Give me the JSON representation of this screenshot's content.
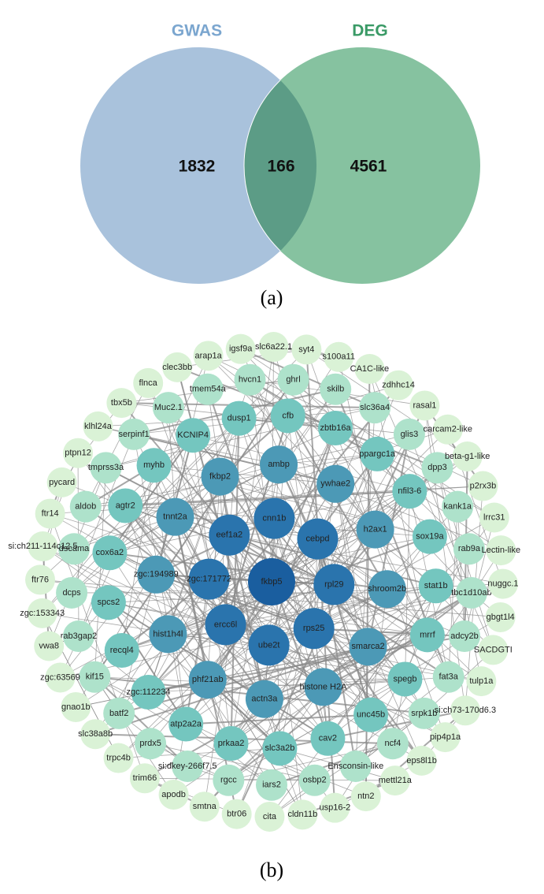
{
  "venn": {
    "left_label": "GWAS",
    "right_label": "DEG",
    "left_only": 1832,
    "overlap": 166,
    "right_only": 4561,
    "caption": "(a)"
  },
  "network": {
    "caption": "(b)",
    "rings": [
      {
        "nodes": [
          "fkbp5"
        ]
      },
      {
        "nodes": [
          "cnn1b",
          "cebpd",
          "rpl29",
          "rps25",
          "ube2t",
          "ercc6l",
          "zgc:171772",
          "eef1a2"
        ]
      },
      {
        "nodes": [
          "ambp",
          "ywhae2",
          "h2ax1",
          "shroom2b",
          "smarca2",
          "histone H2A",
          "actn3a",
          "phf21ab",
          "hist1h4l",
          "zgc:194989",
          "tnnt2a",
          "fkbp2"
        ]
      },
      {
        "nodes": [
          "cfb",
          "zbtb16a",
          "ppargc1a",
          "nfil3-6",
          "sox19a",
          "stat1b",
          "mrrf",
          "spegb",
          "unc45b",
          "cav2",
          "slc3a2b",
          "prkaa2",
          "atp2a2a",
          "zgc:112234",
          "recql4",
          "spcs2",
          "cox6a2",
          "agtr2",
          "myhb",
          "KCNIP4",
          "dusp1"
        ]
      },
      {
        "nodes": [
          "ghrl",
          "skilb",
          "slc36a4",
          "glis3",
          "dpp3",
          "kank1a",
          "rab9a",
          "tbc1d10ab",
          "adcy2b",
          "fat3a",
          "srpk1b",
          "ncf4",
          "Ensconsin-like",
          "osbp2",
          "iars2",
          "rgcc",
          "si:dkey-266f7.5",
          "prdx5",
          "batf2",
          "kif15",
          "rab3gap2",
          "dcps",
          "dscama",
          "aldob",
          "tmprss3a",
          "serpinf1",
          "Muc2.1",
          "tmem54a",
          "hvcn1"
        ]
      },
      {
        "nodes": [
          "syt4",
          "s100a11",
          "CA1C-like",
          "zdhhc14",
          "rasal1",
          "carcam2-like",
          "beta-g1-like",
          "p2rx3b",
          "lrrc31",
          "Lectin-like",
          "nuggc.1",
          "gbgt1l4",
          "SACDGTI",
          "tulp1a",
          "si:ch73-170d6.3",
          "pip4p1a",
          "eps8l1b",
          "mettl21a",
          "ntn2",
          "usp16-2",
          "cldn11b",
          "cita",
          "btr06",
          "smtna",
          "apodb",
          "trim66",
          "trpc4b",
          "slc38a8b",
          "gnao1b",
          "zgc:63569",
          "vwa8",
          "zgc:153343",
          "ftr76",
          "si:ch211-114c12.5",
          "ftr14",
          "pycard",
          "ptpn12",
          "klhl24a",
          "tbx5b",
          "flnca",
          "clec3bb",
          "arap1a",
          "igsf9a",
          "slc6a22.1"
        ]
      }
    ]
  }
}
